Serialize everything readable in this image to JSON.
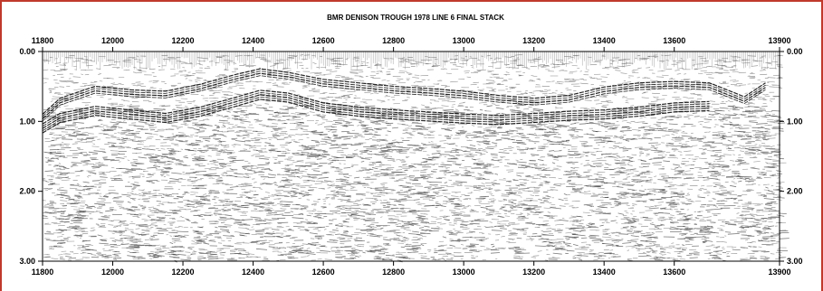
{
  "chart_data": {
    "type": "seismic-section",
    "title": "BMR DENISON TROUGH 1978 LINE 6 FINAL STACK",
    "x_ticks": [
      11800,
      12000,
      12200,
      12400,
      12600,
      12800,
      13000,
      13200,
      13400,
      13600,
      13900
    ],
    "x_tick_labels": [
      "11800",
      "12000",
      "12200",
      "12400",
      "12600",
      "12800",
      "13000",
      "13200",
      "13400",
      "13600",
      "13900"
    ],
    "y_ticks": [
      0.0,
      1.0,
      2.0,
      3.0
    ],
    "y_tick_labels": [
      "0.00",
      "1.00",
      "2.00",
      "3.00"
    ],
    "xlim": [
      11800,
      13900
    ],
    "ylim": [
      0.0,
      3.0
    ],
    "y_inverted": true,
    "colors": {
      "frame": "#c0392b",
      "trace": "#000000",
      "background": "#ffffff"
    },
    "reflectors": [
      {
        "name": "",
        "points": [
          [
            11800,
            0.95
          ],
          [
            11850,
            0.72
          ],
          [
            11950,
            0.55
          ],
          [
            12050,
            0.6
          ],
          [
            12150,
            0.62
          ],
          [
            12250,
            0.52
          ],
          [
            12350,
            0.38
          ],
          [
            12420,
            0.3
          ],
          [
            12500,
            0.35
          ],
          [
            12600,
            0.45
          ],
          [
            12700,
            0.5
          ],
          [
            12800,
            0.55
          ],
          [
            12900,
            0.58
          ],
          [
            13000,
            0.62
          ],
          [
            13100,
            0.68
          ],
          [
            13200,
            0.72
          ],
          [
            13300,
            0.68
          ],
          [
            13400,
            0.56
          ],
          [
            13500,
            0.5
          ],
          [
            13600,
            0.48
          ],
          [
            13700,
            0.5
          ],
          [
            13760,
            0.62
          ],
          [
            13800,
            0.7
          ],
          [
            13860,
            0.5
          ]
        ]
      },
      {
        "name": "",
        "points": [
          [
            11800,
            1.1
          ],
          [
            11850,
            0.95
          ],
          [
            11950,
            0.85
          ],
          [
            12050,
            0.9
          ],
          [
            12150,
            0.95
          ],
          [
            12250,
            0.86
          ],
          [
            12350,
            0.72
          ],
          [
            12420,
            0.62
          ],
          [
            12500,
            0.66
          ],
          [
            12600,
            0.8
          ],
          [
            12700,
            0.86
          ],
          [
            12800,
            0.9
          ],
          [
            12900,
            0.93
          ],
          [
            13000,
            0.96
          ],
          [
            13100,
            0.98
          ],
          [
            13200,
            0.95
          ],
          [
            13300,
            0.92
          ],
          [
            13400,
            0.9
          ],
          [
            13500,
            0.86
          ],
          [
            13600,
            0.8
          ],
          [
            13700,
            0.78
          ]
        ]
      }
    ]
  }
}
